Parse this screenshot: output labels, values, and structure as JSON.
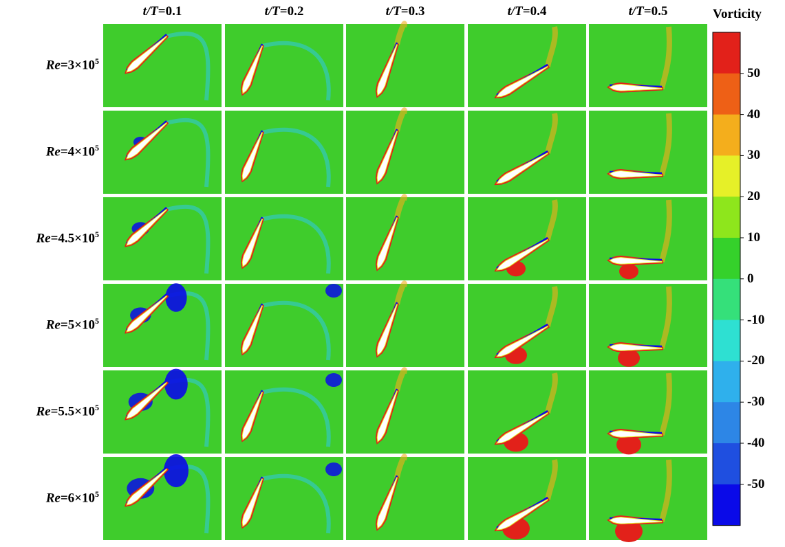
{
  "column_headers": [
    {
      "var": "t/T",
      "eq": "=0.1"
    },
    {
      "var": "t/T",
      "eq": "=0.2"
    },
    {
      "var": "t/T",
      "eq": "=0.3"
    },
    {
      "var": "t/T",
      "eq": "=0.4"
    },
    {
      "var": "t/T",
      "eq": "=0.5"
    }
  ],
  "row_labels": [
    {
      "var": "Re",
      "value": "=3×10",
      "exp": "5"
    },
    {
      "var": "Re",
      "value": "=4×10",
      "exp": "5"
    },
    {
      "var": "Re",
      "value": "=4.5×10",
      "exp": "5"
    },
    {
      "var": "Re",
      "value": "=5×10",
      "exp": "5"
    },
    {
      "var": "Re",
      "value": "=5.5×10",
      "exp": "5"
    },
    {
      "var": "Re",
      "value": "=6×10",
      "exp": "5"
    }
  ],
  "colorbar": {
    "title": "Vorticity",
    "ticks": [
      "50",
      "40",
      "30",
      "20",
      "10",
      "0",
      "-10",
      "-20",
      "-30",
      "-40",
      "-50"
    ],
    "colors": [
      "#0a0ae8",
      "#1f4fe0",
      "#2d86e6",
      "#2fb0ec",
      "#2ee0d2",
      "#35e07a",
      "#35d12b",
      "#8ee61c",
      "#e6f028",
      "#f4ae1c",
      "#ee6016",
      "#e2211a"
    ]
  },
  "field_color": "#3fcc2c"
}
